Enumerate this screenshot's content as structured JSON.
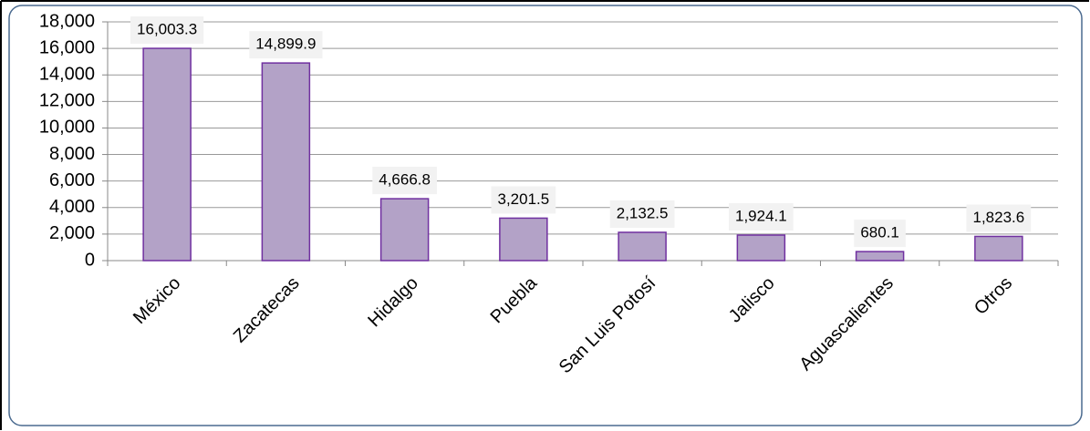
{
  "chart_data": {
    "type": "bar",
    "categories": [
      "México",
      "Zacatecas",
      "Hidalgo",
      "Puebla",
      "San Luis Potosí",
      "Jalisco",
      "Aguascalientes",
      "Otros"
    ],
    "values": [
      16003.3,
      14899.9,
      4666.8,
      3201.5,
      2132.5,
      1924.1,
      680.1,
      1823.6
    ],
    "value_labels": [
      "16,003.3",
      "14,899.9",
      "4,666.8",
      "3,201.5",
      "2,132.5",
      "1,924.1",
      "680.1",
      "1,823.6"
    ],
    "color": "#b3a2c7",
    "ylim": [
      0,
      18000
    ],
    "yticks": [
      0,
      {
        "value": 2000,
        "label": "2,000"
      },
      {
        "value": 4000,
        "label": "4,000"
      },
      {
        "value": 6000,
        "label": "6,000"
      },
      {
        "value": 8000,
        "label": "8,000"
      },
      {
        "value": 10000,
        "label": "10,000"
      },
      {
        "value": 12000,
        "label": "12,000"
      },
      {
        "value": 14000,
        "label": "14,000"
      },
      {
        "value": 16000,
        "label": "16,000"
      },
      {
        "value": 18000,
        "label": "18,000"
      }
    ],
    "grid": true
  }
}
